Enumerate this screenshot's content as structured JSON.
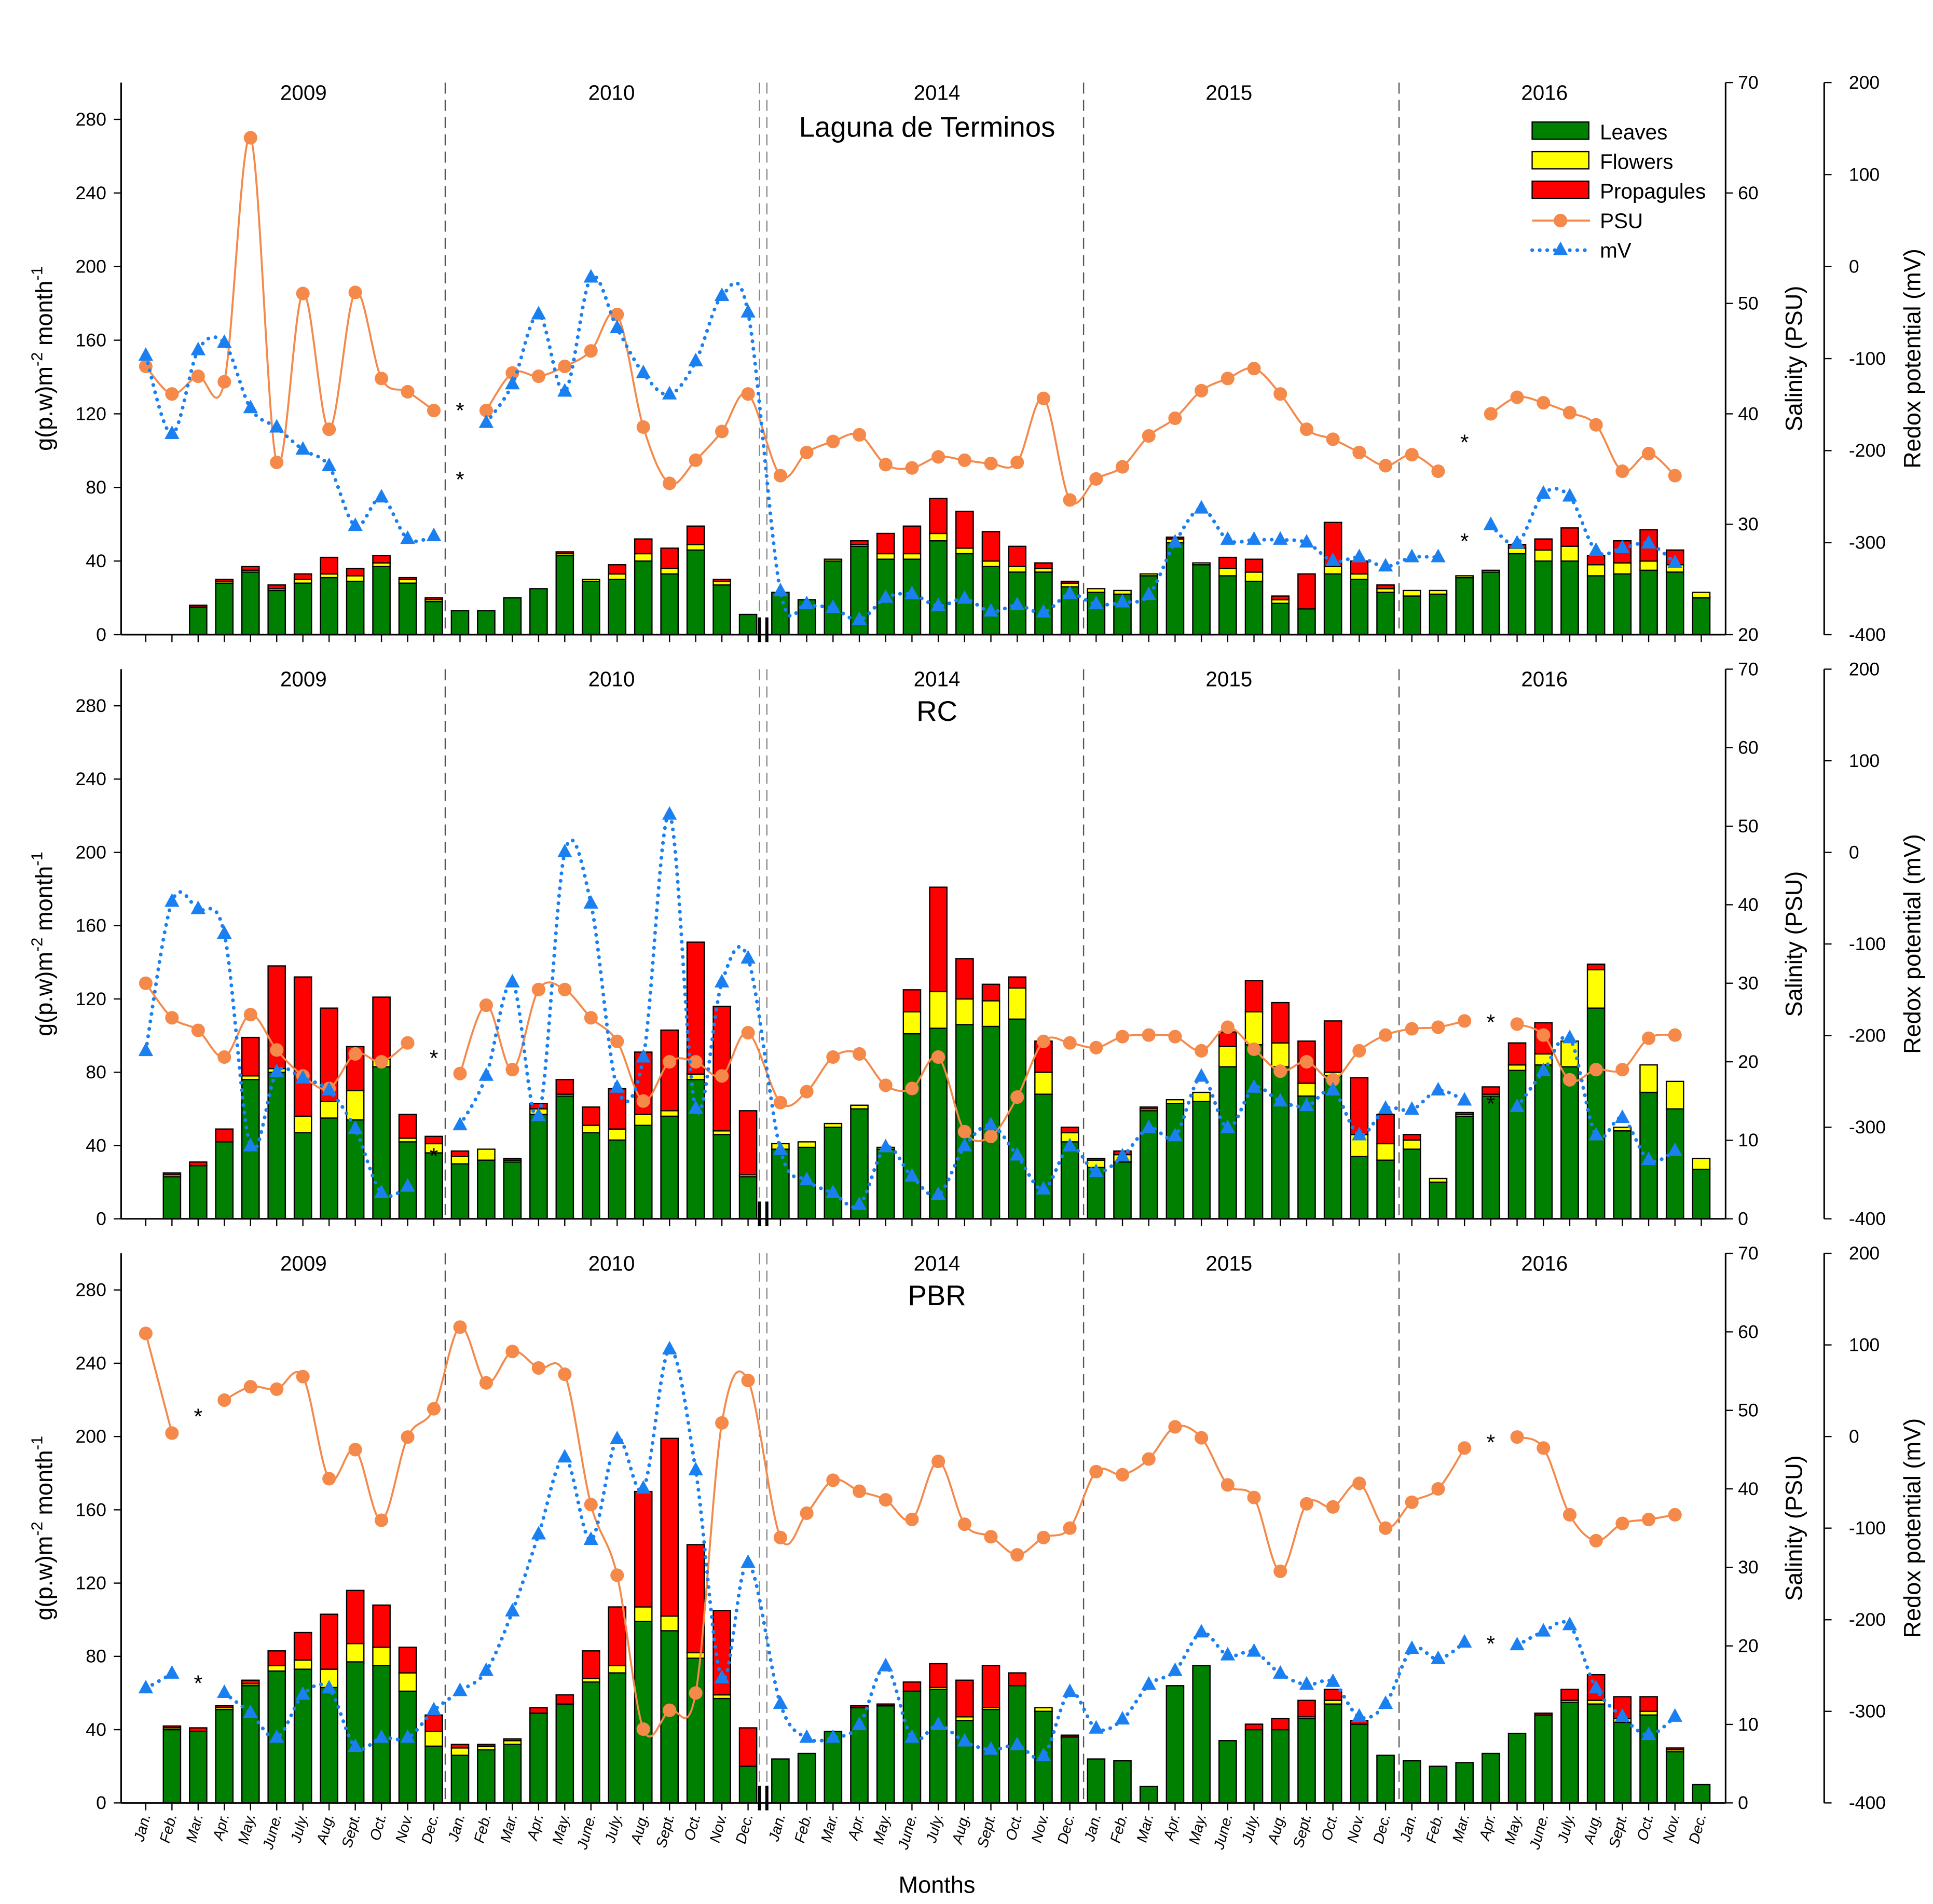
{
  "chart_data": {
    "type": "bar",
    "stacked": true,
    "xlabel": "Months",
    "ylabel": "g(p.w)m-2 month-1",
    "ylabel_parts": {
      "base": "g(p.w)m",
      "sup1": "-2",
      "mid": " month",
      "sup2": "-1"
    },
    "y2label": "Salinity (PSU)",
    "y3label": "Redox potential (mV)",
    "ylim": [
      0,
      300
    ],
    "yticks": [
      0,
      40,
      80,
      120,
      160,
      200,
      240,
      280
    ],
    "y3lim": [
      -400,
      200
    ],
    "y3ticks": [
      -400,
      -300,
      -200,
      -100,
      0,
      100,
      200
    ],
    "years": [
      "2009",
      "2010",
      "2014",
      "2015",
      "2016"
    ],
    "month_labels": [
      "Jan.",
      "Feb.",
      "Mar.",
      "Apr.",
      "May.",
      "June.",
      "July.",
      "Aug.",
      "Sept.",
      "Oct.",
      "Nov.",
      "Dec."
    ],
    "axis_break": "between 2010 and 2014",
    "grid": false,
    "legend": {
      "placement": "top-right of first panel",
      "entries": [
        {
          "key": "leaves",
          "label": "Leaves",
          "kind": "bar",
          "color": "#008000"
        },
        {
          "key": "flowers",
          "label": "Flowers",
          "kind": "bar",
          "color": "#ffff00"
        },
        {
          "key": "propagules",
          "label": "Propagules",
          "kind": "bar",
          "color": "#ff0000"
        },
        {
          "key": "psu",
          "label": "PSU",
          "kind": "line-circle",
          "color": "#f4894a"
        },
        {
          "key": "mv",
          "label": "mV",
          "kind": "dotted-triangle",
          "color": "#1a7ff0"
        }
      ]
    },
    "panels": [
      {
        "title": "Laguna de Terminos",
        "y2lim": [
          20,
          70
        ],
        "y2ticks": [
          20,
          30,
          40,
          50,
          60,
          70
        ],
        "leaves": [
          0,
          0,
          15,
          28,
          34,
          24,
          28,
          31,
          29,
          37,
          28,
          18,
          13,
          13,
          20,
          25,
          43,
          29,
          30,
          40,
          33,
          46,
          27,
          11,
          23,
          19,
          40,
          48,
          41,
          41,
          51,
          44,
          37,
          34,
          34,
          26,
          23,
          22,
          32,
          50,
          38,
          32,
          29,
          17,
          14,
          33,
          30,
          23,
          21,
          22,
          31,
          34,
          44,
          40,
          40,
          32,
          33,
          35,
          34,
          20
        ],
        "flowers": [
          0,
          0,
          0,
          1,
          1,
          1,
          2,
          2,
          3,
          2,
          2,
          1,
          0,
          0,
          0,
          0,
          1,
          1,
          3,
          4,
          3,
          3,
          2,
          0,
          0,
          0,
          1,
          1,
          3,
          3,
          4,
          3,
          3,
          3,
          2,
          2,
          2,
          2,
          1,
          2,
          1,
          4,
          5,
          2,
          0,
          4,
          3,
          2,
          3,
          2,
          1,
          1,
          3,
          6,
          8,
          6,
          6,
          5,
          4,
          3
        ],
        "propagules": [
          0,
          0,
          1,
          1,
          2,
          2,
          3,
          9,
          4,
          4,
          1,
          1,
          0,
          0,
          0,
          0,
          1,
          0,
          5,
          8,
          11,
          10,
          1,
          0,
          0,
          0,
          0,
          2,
          11,
          15,
          19,
          20,
          16,
          11,
          3,
          1,
          0,
          0,
          0,
          1,
          0,
          6,
          7,
          2,
          19,
          24,
          7,
          2,
          0,
          0,
          0,
          0,
          2,
          6,
          10,
          5,
          12,
          17,
          8,
          0
        ],
        "psu": [
          44.3,
          41.8,
          43.4,
          42.9,
          65,
          35.6,
          50.9,
          38.6,
          51,
          43.2,
          42,
          40.3,
          null,
          40.3,
          43.7,
          43.4,
          44.3,
          45.7,
          49,
          38.8,
          33.7,
          35.8,
          38.4,
          41.8,
          34.4,
          36.5,
          37.5,
          38.1,
          35.4,
          35.1,
          36.1,
          35.8,
          35.5,
          35.6,
          41.4,
          32.2,
          34.1,
          35.2,
          38,
          39.6,
          42.1,
          43.2,
          44.1,
          41.8,
          38.6,
          37.7,
          36.5,
          35.3,
          36.3,
          34.8,
          null,
          40,
          41.5,
          41,
          40.1,
          39,
          34.8,
          36.4,
          34.4,
          null
        ],
        "mv": [
          -97,
          -182,
          -91,
          -83,
          -154,
          -175,
          -199,
          -217,
          -282,
          -251,
          -296,
          -293,
          null,
          -170,
          -128,
          -52,
          -136,
          -12,
          -67,
          -116,
          -139,
          -103,
          -32,
          -50,
          -353,
          -367,
          -371,
          -384,
          -360,
          -356,
          -369,
          -361,
          -375,
          -368,
          -376,
          -356,
          -367,
          -365,
          -357,
          -300,
          -263,
          -297,
          -297,
          -297,
          -300,
          -320,
          -316,
          -326,
          -316,
          -316,
          null,
          -281,
          -301,
          -247,
          -250,
          -309,
          -306,
          -301,
          -322,
          null
        ],
        "asterisk_months": [
          12,
          50
        ]
      },
      {
        "title": "RC",
        "y2lim": [
          0,
          70
        ],
        "y2ticks": [
          0,
          10,
          20,
          30,
          40,
          50,
          60,
          70
        ],
        "leaves": [
          0,
          23,
          29,
          42,
          76,
          80,
          47,
          55,
          54,
          83,
          42,
          36,
          30,
          32,
          31,
          57,
          67,
          47,
          43,
          51,
          56,
          76,
          46,
          23,
          38,
          39,
          50,
          60,
          38,
          101,
          104,
          106,
          105,
          109,
          68,
          42,
          28,
          31,
          59,
          63,
          64,
          83,
          95,
          83,
          67,
          78,
          34,
          32,
          38,
          20,
          56,
          67,
          81,
          84,
          83,
          115,
          48,
          69,
          60,
          27
        ],
        "flowers": [
          0,
          1,
          0,
          0,
          2,
          2,
          9,
          9,
          16,
          4,
          2,
          5,
          4,
          6,
          1,
          3,
          1,
          4,
          6,
          6,
          3,
          3,
          2,
          1,
          3,
          3,
          2,
          2,
          1,
          12,
          20,
          14,
          14,
          17,
          12,
          5,
          4,
          4,
          1,
          2,
          5,
          11,
          18,
          13,
          7,
          2,
          12,
          9,
          5,
          2,
          1,
          1,
          3,
          6,
          14,
          21,
          2,
          15,
          15,
          6
        ],
        "propagules": [
          0,
          1,
          2,
          7,
          21,
          56,
          76,
          51,
          24,
          34,
          13,
          4,
          3,
          0,
          1,
          3,
          8,
          10,
          22,
          34,
          44,
          72,
          68,
          35,
          0,
          0,
          0,
          0,
          0,
          12,
          57,
          22,
          9,
          6,
          17,
          3,
          1,
          2,
          1,
          0,
          0,
          8,
          17,
          22,
          23,
          28,
          31,
          16,
          3,
          0,
          1,
          4,
          12,
          17,
          0,
          3,
          0,
          0,
          0,
          0
        ],
        "psu": [
          30,
          25.6,
          24,
          20.6,
          26,
          21.5,
          18.2,
          16.6,
          21,
          20,
          22.4,
          null,
          18.5,
          27.2,
          19,
          29.2,
          29.2,
          25.6,
          22.6,
          15,
          20,
          20,
          18.2,
          23.7,
          14.8,
          16.2,
          20.6,
          21,
          17,
          16.6,
          20.6,
          11.1,
          10.5,
          15.5,
          22.6,
          22.4,
          21.8,
          23.2,
          23.4,
          23.2,
          21.4,
          24.4,
          21.6,
          18.8,
          20,
          17.7,
          21.4,
          23.4,
          24.2,
          24.4,
          25.2,
          null,
          24.8,
          23.4,
          17.7,
          19,
          19,
          23,
          23.4,
          null
        ],
        "mv": [
          -217,
          -54,
          -62,
          -89,
          -321,
          -240,
          -247,
          -260,
          -302,
          -372,
          -365,
          null,
          -298,
          -244,
          -142,
          -288,
          0,
          -56,
          -257,
          -224,
          41,
          -280,
          -142,
          -116,
          -325,
          -358,
          -372,
          -385,
          -322,
          -354,
          -374,
          -321,
          -298,
          -331,
          -368,
          -321,
          -349,
          -332,
          -301,
          -310,
          -245,
          -301,
          -257,
          -272,
          -277,
          -260,
          -309,
          -280,
          -281,
          -260,
          -271,
          null,
          -278,
          -239,
          -203,
          -309,
          -290,
          -336,
          -326,
          null
        ],
        "asterisk_months": [
          11,
          51
        ]
      },
      {
        "title": "PBR",
        "y2lim": [
          0,
          70
        ],
        "y2ticks": [
          0,
          10,
          20,
          30,
          40,
          50,
          60,
          70
        ],
        "leaves": [
          0,
          40,
          39,
          51,
          64,
          72,
          73,
          63,
          77,
          75,
          61,
          31,
          26,
          29,
          32,
          49,
          54,
          66,
          71,
          99,
          94,
          79,
          57,
          20,
          24,
          27,
          39,
          52,
          53,
          61,
          62,
          45,
          51,
          64,
          50,
          36,
          24,
          23,
          9,
          64,
          75,
          34,
          40,
          40,
          46,
          54,
          43,
          26,
          23,
          20,
          22,
          27,
          38,
          48,
          55,
          54,
          44,
          48,
          28,
          10
        ],
        "flowers": [
          0,
          1,
          0,
          1,
          1,
          3,
          5,
          10,
          10,
          10,
          10,
          8,
          4,
          2,
          2,
          0,
          0,
          2,
          4,
          8,
          8,
          3,
          2,
          0,
          0,
          0,
          0,
          0,
          0,
          0,
          1,
          2,
          1,
          0,
          2,
          0,
          0,
          0,
          0,
          0,
          0,
          0,
          0,
          0,
          1,
          2,
          0,
          0,
          0,
          0,
          0,
          0,
          0,
          0,
          1,
          2,
          2,
          2,
          1,
          0
        ],
        "propagules": [
          0,
          1,
          2,
          1,
          2,
          8,
          15,
          30,
          29,
          23,
          14,
          9,
          2,
          1,
          1,
          3,
          5,
          15,
          32,
          63,
          97,
          59,
          46,
          21,
          0,
          0,
          0,
          1,
          1,
          5,
          13,
          20,
          23,
          7,
          0,
          1,
          0,
          0,
          0,
          0,
          0,
          0,
          3,
          6,
          9,
          6,
          2,
          0,
          0,
          0,
          0,
          0,
          0,
          1,
          6,
          14,
          12,
          8,
          1,
          0
        ],
        "psu": [
          59.8,
          47.1,
          null,
          51.3,
          53,
          52.7,
          54.3,
          41.3,
          45,
          36,
          46.6,
          50.2,
          60.6,
          53.5,
          57.5,
          55.4,
          54.6,
          38,
          29,
          9.4,
          11.8,
          14,
          48.4,
          53.8,
          33.8,
          36.9,
          41.1,
          39.7,
          38.6,
          36.1,
          43.5,
          35.5,
          33.9,
          31.6,
          33.8,
          35,
          42.2,
          41.8,
          43.8,
          47.9,
          46.5,
          40.5,
          38.9,
          29.5,
          38.1,
          37.7,
          40.7,
          35,
          38.3,
          40,
          45.2,
          null,
          46.6,
          45.2,
          36.7,
          33.4,
          35.6,
          36.1,
          36.7,
          null
        ],
        "mv": [
          -275,
          -259,
          null,
          -280,
          -302,
          -329,
          -282,
          -275,
          -339,
          -329,
          -329,
          -299,
          -278,
          -256,
          -191,
          -107,
          -23,
          -113,
          -3,
          -57,
          95,
          -37,
          -264,
          -138,
          -292,
          -329,
          -329,
          -315,
          -251,
          -329,
          -315,
          -333,
          -342,
          -337,
          -349,
          -279,
          -319,
          -309,
          -271,
          -256,
          -214,
          -239,
          -235,
          -259,
          -271,
          -268,
          -306,
          -292,
          -232,
          -243,
          -225,
          null,
          -228,
          -213,
          -206,
          -275,
          -306,
          -326,
          -306,
          null
        ],
        "asterisk_months": [
          2,
          51
        ]
      }
    ]
  }
}
